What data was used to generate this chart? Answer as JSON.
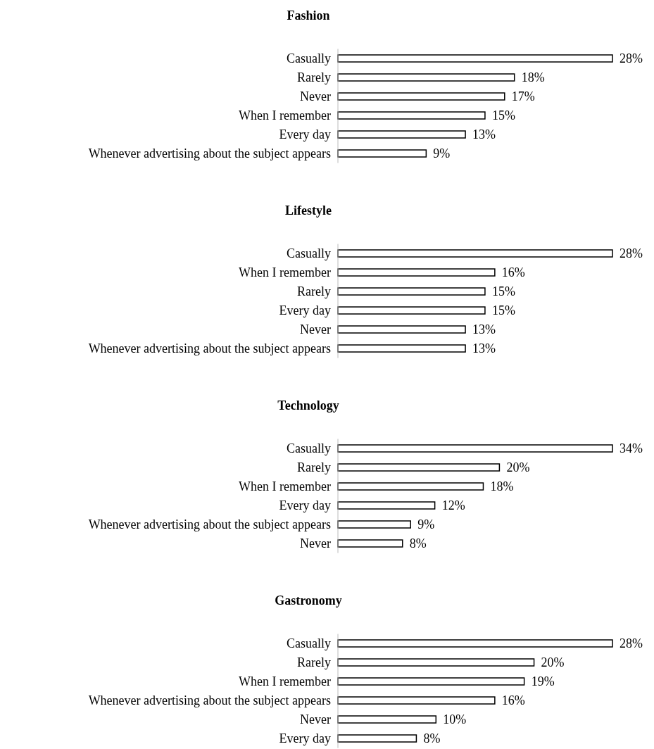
{
  "chart_data": [
    {
      "type": "bar",
      "orientation": "horizontal",
      "title": "Fashion",
      "categories": [
        "Casually",
        "Rarely",
        "Never",
        "When I remember",
        "Every day",
        "Whenever advertising about the subject appears"
      ],
      "values": [
        28,
        18,
        17,
        15,
        13,
        9
      ],
      "color": "#ffffff",
      "value_labels": [
        "28%",
        "18%",
        "17%",
        "15%",
        "13%",
        "9%"
      ]
    },
    {
      "type": "bar",
      "orientation": "horizontal",
      "title": "Lifestyle",
      "categories": [
        "Casually",
        "When I remember",
        "Rarely",
        "Every day",
        "Never",
        "Whenever advertising about the subject appears"
      ],
      "values": [
        28,
        16,
        15,
        15,
        13,
        13
      ],
      "color": "#ffffff",
      "value_labels": [
        "28%",
        "16%",
        "15%",
        "15%",
        "13%",
        "13%"
      ]
    },
    {
      "type": "bar",
      "orientation": "horizontal",
      "title": "Technology",
      "categories": [
        "Casually",
        "Rarely",
        "When I remember",
        "Every day",
        "Whenever advertising about the subject appears",
        "Never"
      ],
      "values": [
        34,
        20,
        18,
        12,
        9,
        8
      ],
      "color": "#ffffff",
      "value_labels": [
        "34%",
        "20%",
        "18%",
        "12%",
        "9%",
        "8%"
      ]
    },
    {
      "type": "bar",
      "orientation": "horizontal",
      "title": "Gastronomy",
      "categories": [
        "Casually",
        "Rarely",
        "When I remember",
        "Whenever advertising about the subject appears",
        "Never",
        "Every day"
      ],
      "values": [
        28,
        20,
        19,
        16,
        10,
        8
      ],
      "color": "#ffffff",
      "value_labels": [
        "28%",
        "20%",
        "19%",
        "16%",
        "10%",
        "8%"
      ]
    }
  ]
}
